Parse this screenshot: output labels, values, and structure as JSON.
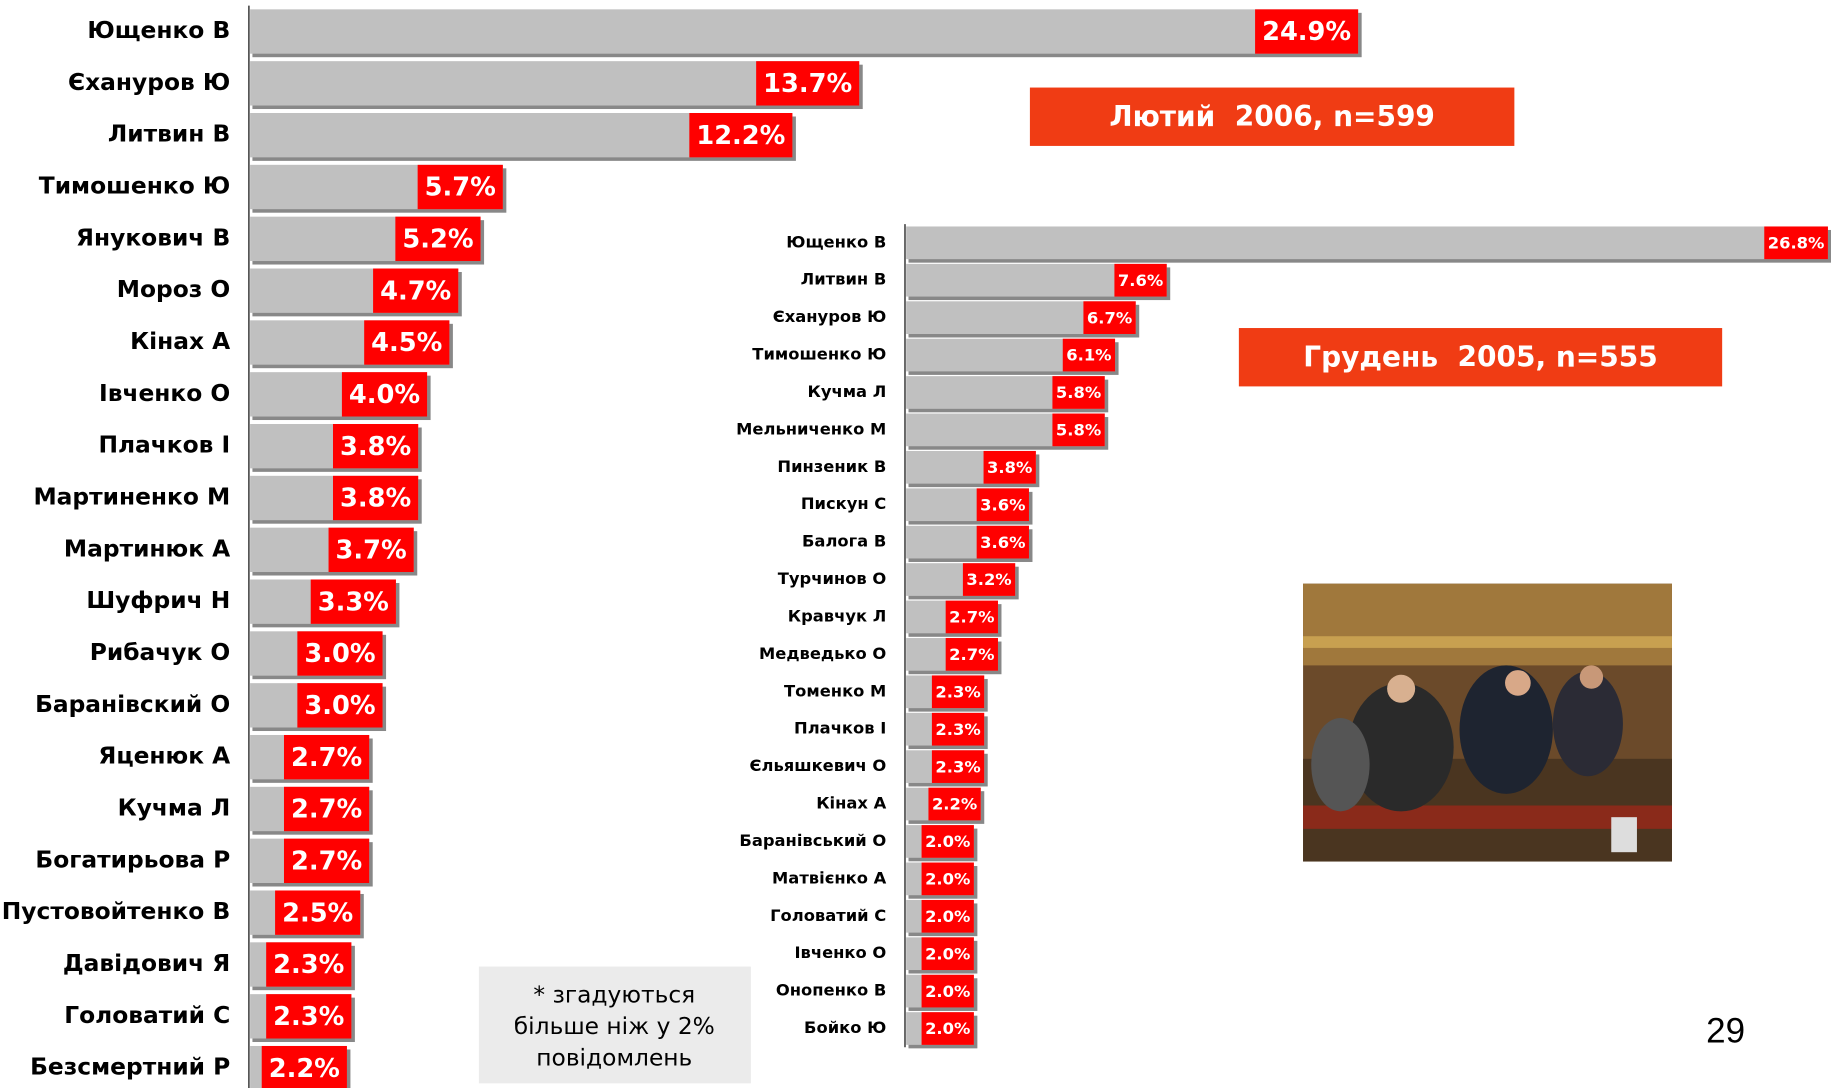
{
  "chart_data": [
    {
      "type": "bar",
      "orientation": "horizontal",
      "title": "Лютий  2006, n=599",
      "color": "#c0c0c0",
      "label_color": "#ff0000",
      "categories": [
        "Ющенко В",
        "Єхануров Ю",
        "Литвин В",
        "Тимошенко Ю",
        "Янукович В",
        "Мороз О",
        "Кінах А",
        "Івченко О",
        "Плачков І",
        "Мартиненко М",
        "Мартинюк А",
        "Шуфрич Н",
        "Рибачук О",
        "Баранівский О",
        "Яценюк А",
        "Кучма Л",
        "Богатирьова Р",
        "Пустовойтенко В",
        "Давідович Я",
        "Головатий С",
        "Безсмертний Р"
      ],
      "values": [
        24.9,
        13.7,
        12.2,
        5.7,
        5.2,
        4.7,
        4.5,
        4.0,
        3.8,
        3.8,
        3.7,
        3.3,
        3.0,
        3.0,
        2.7,
        2.7,
        2.7,
        2.5,
        2.3,
        2.3,
        2.2
      ],
      "value_labels": [
        "24.9%",
        "13.7%",
        "12.2%",
        "5.7%",
        "5.2%",
        "4.7%",
        "4.5%",
        "4.0%",
        "3.8%",
        "3.8%",
        "3.7%",
        "3.3%",
        "3.0%",
        "3.0%",
        "2.7%",
        "2.7%",
        "2.7%",
        "2.5%",
        "2.3%",
        "2.3%",
        "2.2%"
      ],
      "xlim": [
        0,
        25
      ]
    },
    {
      "type": "bar",
      "orientation": "horizontal",
      "title": "Грудень  2005, n=555",
      "color": "#c0c0c0",
      "label_color": "#ff0000",
      "categories": [
        "Ющенко В",
        "Литвин В",
        "Єхануров Ю",
        "Тимошенко Ю",
        "Кучма Л",
        "Мельниченко М",
        "Пинзеник В",
        "Пискун С",
        "Балога В",
        "Турчинов О",
        "Кравчук Л",
        "Медведько О",
        "Томенко М",
        "Плачков І",
        "Єльяшкевич О",
        "Кінах А",
        "Баранівський О",
        "Матвієнко А",
        "Головатий С",
        "Івченко О",
        "Онопенко В",
        "Бойко Ю"
      ],
      "values": [
        26.8,
        7.6,
        6.7,
        6.1,
        5.8,
        5.8,
        3.8,
        3.6,
        3.6,
        3.2,
        2.7,
        2.7,
        2.3,
        2.3,
        2.3,
        2.2,
        2.0,
        2.0,
        2.0,
        2.0,
        2.0,
        2.0
      ],
      "value_labels": [
        "26.8%",
        "7.6%",
        "6.7%",
        "6.1%",
        "5.8%",
        "5.8%",
        "3.8%",
        "3.6%",
        "3.6%",
        "3.2%",
        "2.7%",
        "2.7%",
        "2.3%",
        "2.3%",
        "2.3%",
        "2.2%",
        "2.0%",
        "2.0%",
        "2.0%",
        "2.0%",
        "2.0%",
        "2.0%"
      ],
      "xlim": [
        0,
        27
      ]
    }
  ],
  "note": [
    "* згадуються",
    "більше ніж у 2%",
    "повідомлень"
  ],
  "page_number": "29"
}
